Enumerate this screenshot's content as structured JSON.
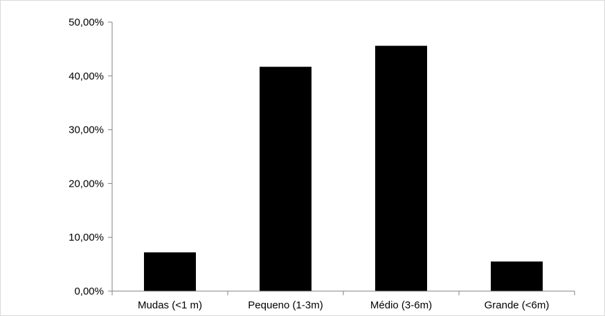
{
  "chart_data": {
    "type": "bar",
    "title": "",
    "xlabel": "",
    "ylabel": "",
    "categories": [
      "Mudas (<1 m)",
      "Pequeno (1-3m)",
      "Médio (3-6m)",
      "Grande (<6m)"
    ],
    "values": [
      7.2,
      41.7,
      45.6,
      5.5
    ],
    "ylim": [
      0,
      50
    ],
    "yticks": [
      0,
      10,
      20,
      30,
      40,
      50
    ],
    "ytick_labels": [
      "0,00%",
      "10,00%",
      "20,00%",
      "30,00%",
      "40,00%",
      "50,00%"
    ],
    "grid": false,
    "legend": "none",
    "bar_color": "#000000"
  }
}
